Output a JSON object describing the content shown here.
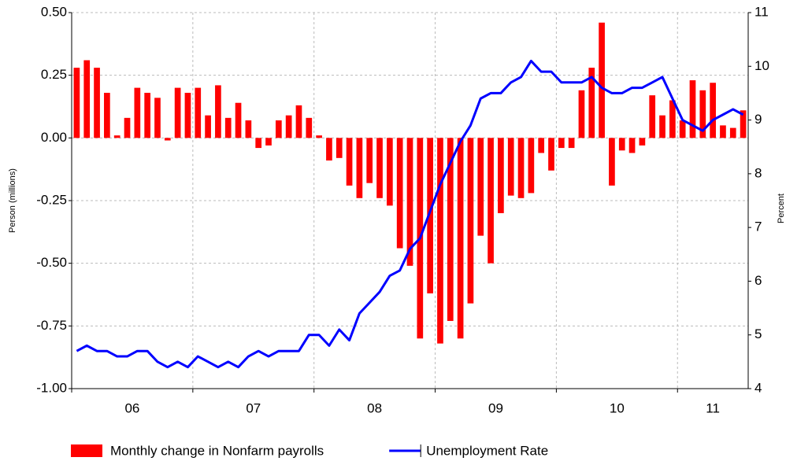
{
  "chart_data": {
    "type": "bar_line",
    "ylabel": "Person (millions)",
    "y2label": "Percent",
    "xlim": [
      0,
      67
    ],
    "xticks": [
      {
        "value": 0,
        "label": "06"
      },
      {
        "value": 12,
        "label": "07"
      },
      {
        "value": 24,
        "label": "08"
      },
      {
        "value": 36,
        "label": "09"
      },
      {
        "value": 48,
        "label": "10"
      },
      {
        "value": 60,
        "label": "11"
      }
    ],
    "ylim": [
      -1,
      0.5
    ],
    "yticks": [
      {
        "value": 0.5,
        "label": "0.50"
      },
      {
        "value": 0.25,
        "label": "0.25"
      },
      {
        "value": 0,
        "label": "0.00"
      },
      {
        "value": -0.25,
        "label": "-0.25"
      },
      {
        "value": -0.5,
        "label": "-0.50"
      },
      {
        "value": -0.75,
        "label": "-0.75"
      },
      {
        "value": -1,
        "label": "-1.00"
      }
    ],
    "y2lim": [
      4,
      11
    ],
    "y2ticks": [
      4,
      5,
      6,
      7,
      8,
      9,
      10,
      11
    ],
    "grid": true,
    "legend": "bottom",
    "series": [
      {
        "name": "Monthly change in Nonfarm payrolls",
        "type": "bar",
        "color": "#ff0000",
        "values": [
          0.28,
          0.31,
          0.28,
          0.18,
          0.01,
          0.08,
          0.2,
          0.18,
          0.16,
          -0.01,
          0.2,
          0.18,
          0.2,
          0.09,
          0.21,
          0.08,
          0.14,
          0.07,
          -0.04,
          -0.03,
          0.07,
          0.09,
          0.13,
          0.08,
          0.01,
          -0.09,
          -0.08,
          -0.19,
          -0.24,
          -0.18,
          -0.24,
          -0.27,
          -0.44,
          -0.51,
          -0.8,
          -0.62,
          -0.82,
          -0.73,
          -0.8,
          -0.66,
          -0.39,
          -0.5,
          -0.3,
          -0.23,
          -0.24,
          -0.22,
          -0.06,
          -0.13,
          -0.04,
          -0.04,
          0.19,
          0.28,
          0.46,
          -0.19,
          -0.05,
          -0.06,
          -0.03,
          0.17,
          0.09,
          0.15,
          0.07,
          0.23,
          0.19,
          0.22,
          0.05,
          0.04,
          0.11
        ]
      },
      {
        "name": "Unemployment Rate",
        "type": "line",
        "axis": "y2",
        "color": "#0000ff",
        "values": [
          4.7,
          4.8,
          4.7,
          4.7,
          4.6,
          4.6,
          4.7,
          4.7,
          4.5,
          4.4,
          4.5,
          4.4,
          4.6,
          4.5,
          4.4,
          4.5,
          4.4,
          4.6,
          4.7,
          4.6,
          4.7,
          4.7,
          4.7,
          5.0,
          5.0,
          4.8,
          5.1,
          4.9,
          5.4,
          5.6,
          5.8,
          6.1,
          6.2,
          6.6,
          6.8,
          7.3,
          7.8,
          8.2,
          8.6,
          8.9,
          9.4,
          9.5,
          9.5,
          9.7,
          9.8,
          10.1,
          9.9,
          9.9,
          9.7,
          9.7,
          9.7,
          9.8,
          9.6,
          9.5,
          9.5,
          9.6,
          9.6,
          9.7,
          9.8,
          9.4,
          9.0,
          8.9,
          8.8,
          9.0,
          9.1,
          9.2,
          9.1
        ]
      }
    ]
  }
}
